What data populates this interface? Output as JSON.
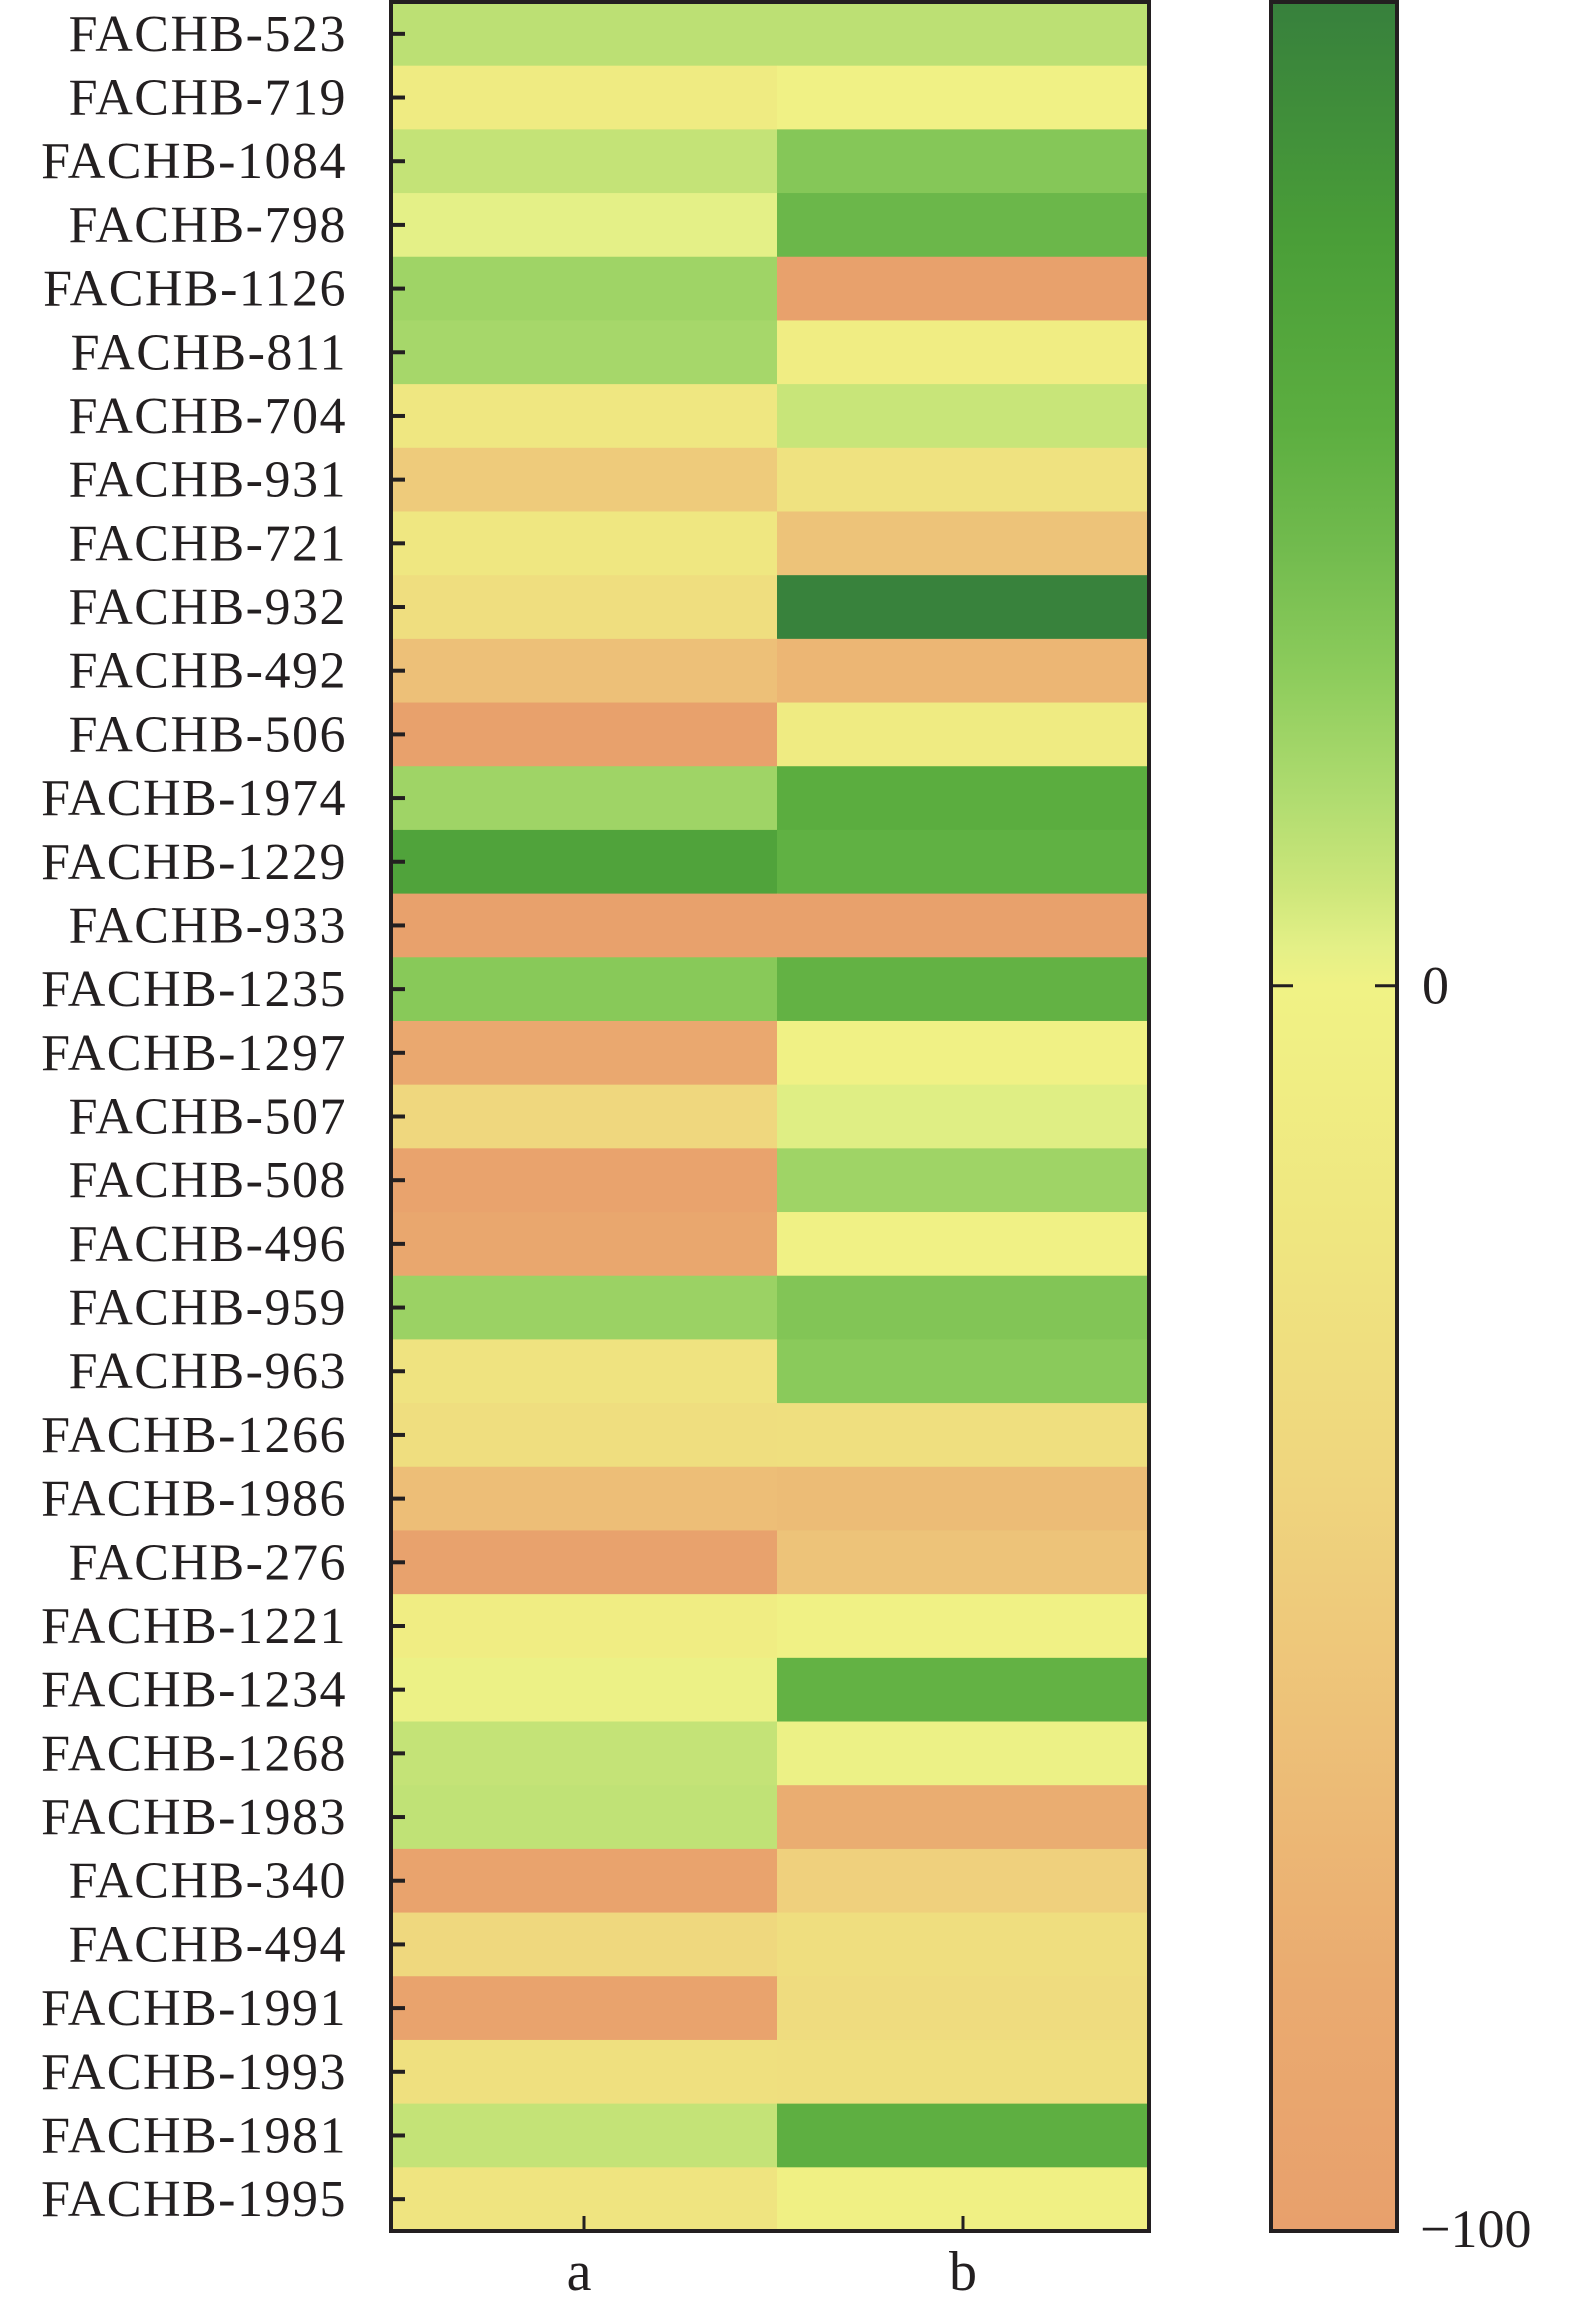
{
  "chart_data": {
    "type": "heatmap",
    "title": "",
    "xlabel": "",
    "ylabel": "",
    "columns": [
      "a",
      "b"
    ],
    "rows": [
      "FACHB-523",
      "FACHB-719",
      "FACHB-1084",
      "FACHB-798",
      "FACHB-1126",
      "FACHB-811",
      "FACHB-704",
      "FACHB-931",
      "FACHB-721",
      "FACHB-932",
      "FACHB-492",
      "FACHB-506",
      "FACHB-1974",
      "FACHB-1229",
      "FACHB-933",
      "FACHB-1235",
      "FACHB-1297",
      "FACHB-507",
      "FACHB-508",
      "FACHB-496",
      "FACHB-959",
      "FACHB-963",
      "FACHB-1266",
      "FACHB-1986",
      "FACHB-276",
      "FACHB-1221",
      "FACHB-1234",
      "FACHB-1268",
      "FACHB-1983",
      "FACHB-340",
      "FACHB-494",
      "FACHB-1991",
      "FACHB-1993",
      "FACHB-1981",
      "FACHB-1995"
    ],
    "values": [
      [
        12,
        12
      ],
      [
        -12,
        -2
      ],
      [
        10,
        28
      ],
      [
        3,
        38
      ],
      [
        20,
        -98
      ],
      [
        18,
        -8
      ],
      [
        -18,
        9
      ],
      [
        -50,
        -25
      ],
      [
        -18,
        -57
      ],
      [
        -30,
        78
      ],
      [
        -60,
        -70
      ],
      [
        -98,
        -12
      ],
      [
        20,
        46
      ],
      [
        55,
        43
      ],
      [
        -98,
        -98
      ],
      [
        27,
        42
      ],
      [
        -85,
        -1
      ],
      [
        -38,
        4
      ],
      [
        -95,
        20
      ],
      [
        -88,
        -2
      ],
      [
        21,
        29
      ],
      [
        -24,
        26
      ],
      [
        -30,
        -28
      ],
      [
        -62,
        -64
      ],
      [
        -97,
        -57
      ],
      [
        -8,
        -2
      ],
      [
        1,
        42
      ],
      [
        10,
        1
      ],
      [
        11,
        -78
      ],
      [
        -95,
        -45
      ],
      [
        -36,
        -30
      ],
      [
        -95,
        -32
      ],
      [
        -27,
        -28
      ],
      [
        10,
        44
      ],
      [
        -22,
        -3
      ]
    ],
    "colorbar": {
      "range": [
        -100,
        79
      ],
      "ticks": [
        0,
        -100
      ],
      "tick_labels": [
        "0",
        "−100"
      ],
      "colormap": [
        {
          "value": -100,
          "color": "#e8a06c"
        },
        {
          "value": -80,
          "color": "#eaab70"
        },
        {
          "value": -60,
          "color": "#edc078"
        },
        {
          "value": -40,
          "color": "#efd57e"
        },
        {
          "value": -20,
          "color": "#efe680"
        },
        {
          "value": 0,
          "color": "#f0f285"
        },
        {
          "value": 3,
          "color": "#e4f087"
        },
        {
          "value": 8,
          "color": "#cce67a"
        },
        {
          "value": 15,
          "color": "#b0dc70"
        },
        {
          "value": 25,
          "color": "#8dcc5c"
        },
        {
          "value": 35,
          "color": "#72bb4e"
        },
        {
          "value": 45,
          "color": "#5cae40"
        },
        {
          "value": 60,
          "color": "#4a9e38"
        },
        {
          "value": 79,
          "color": "#37803c"
        }
      ]
    },
    "grid": false,
    "legend": "colorbar-right"
  }
}
